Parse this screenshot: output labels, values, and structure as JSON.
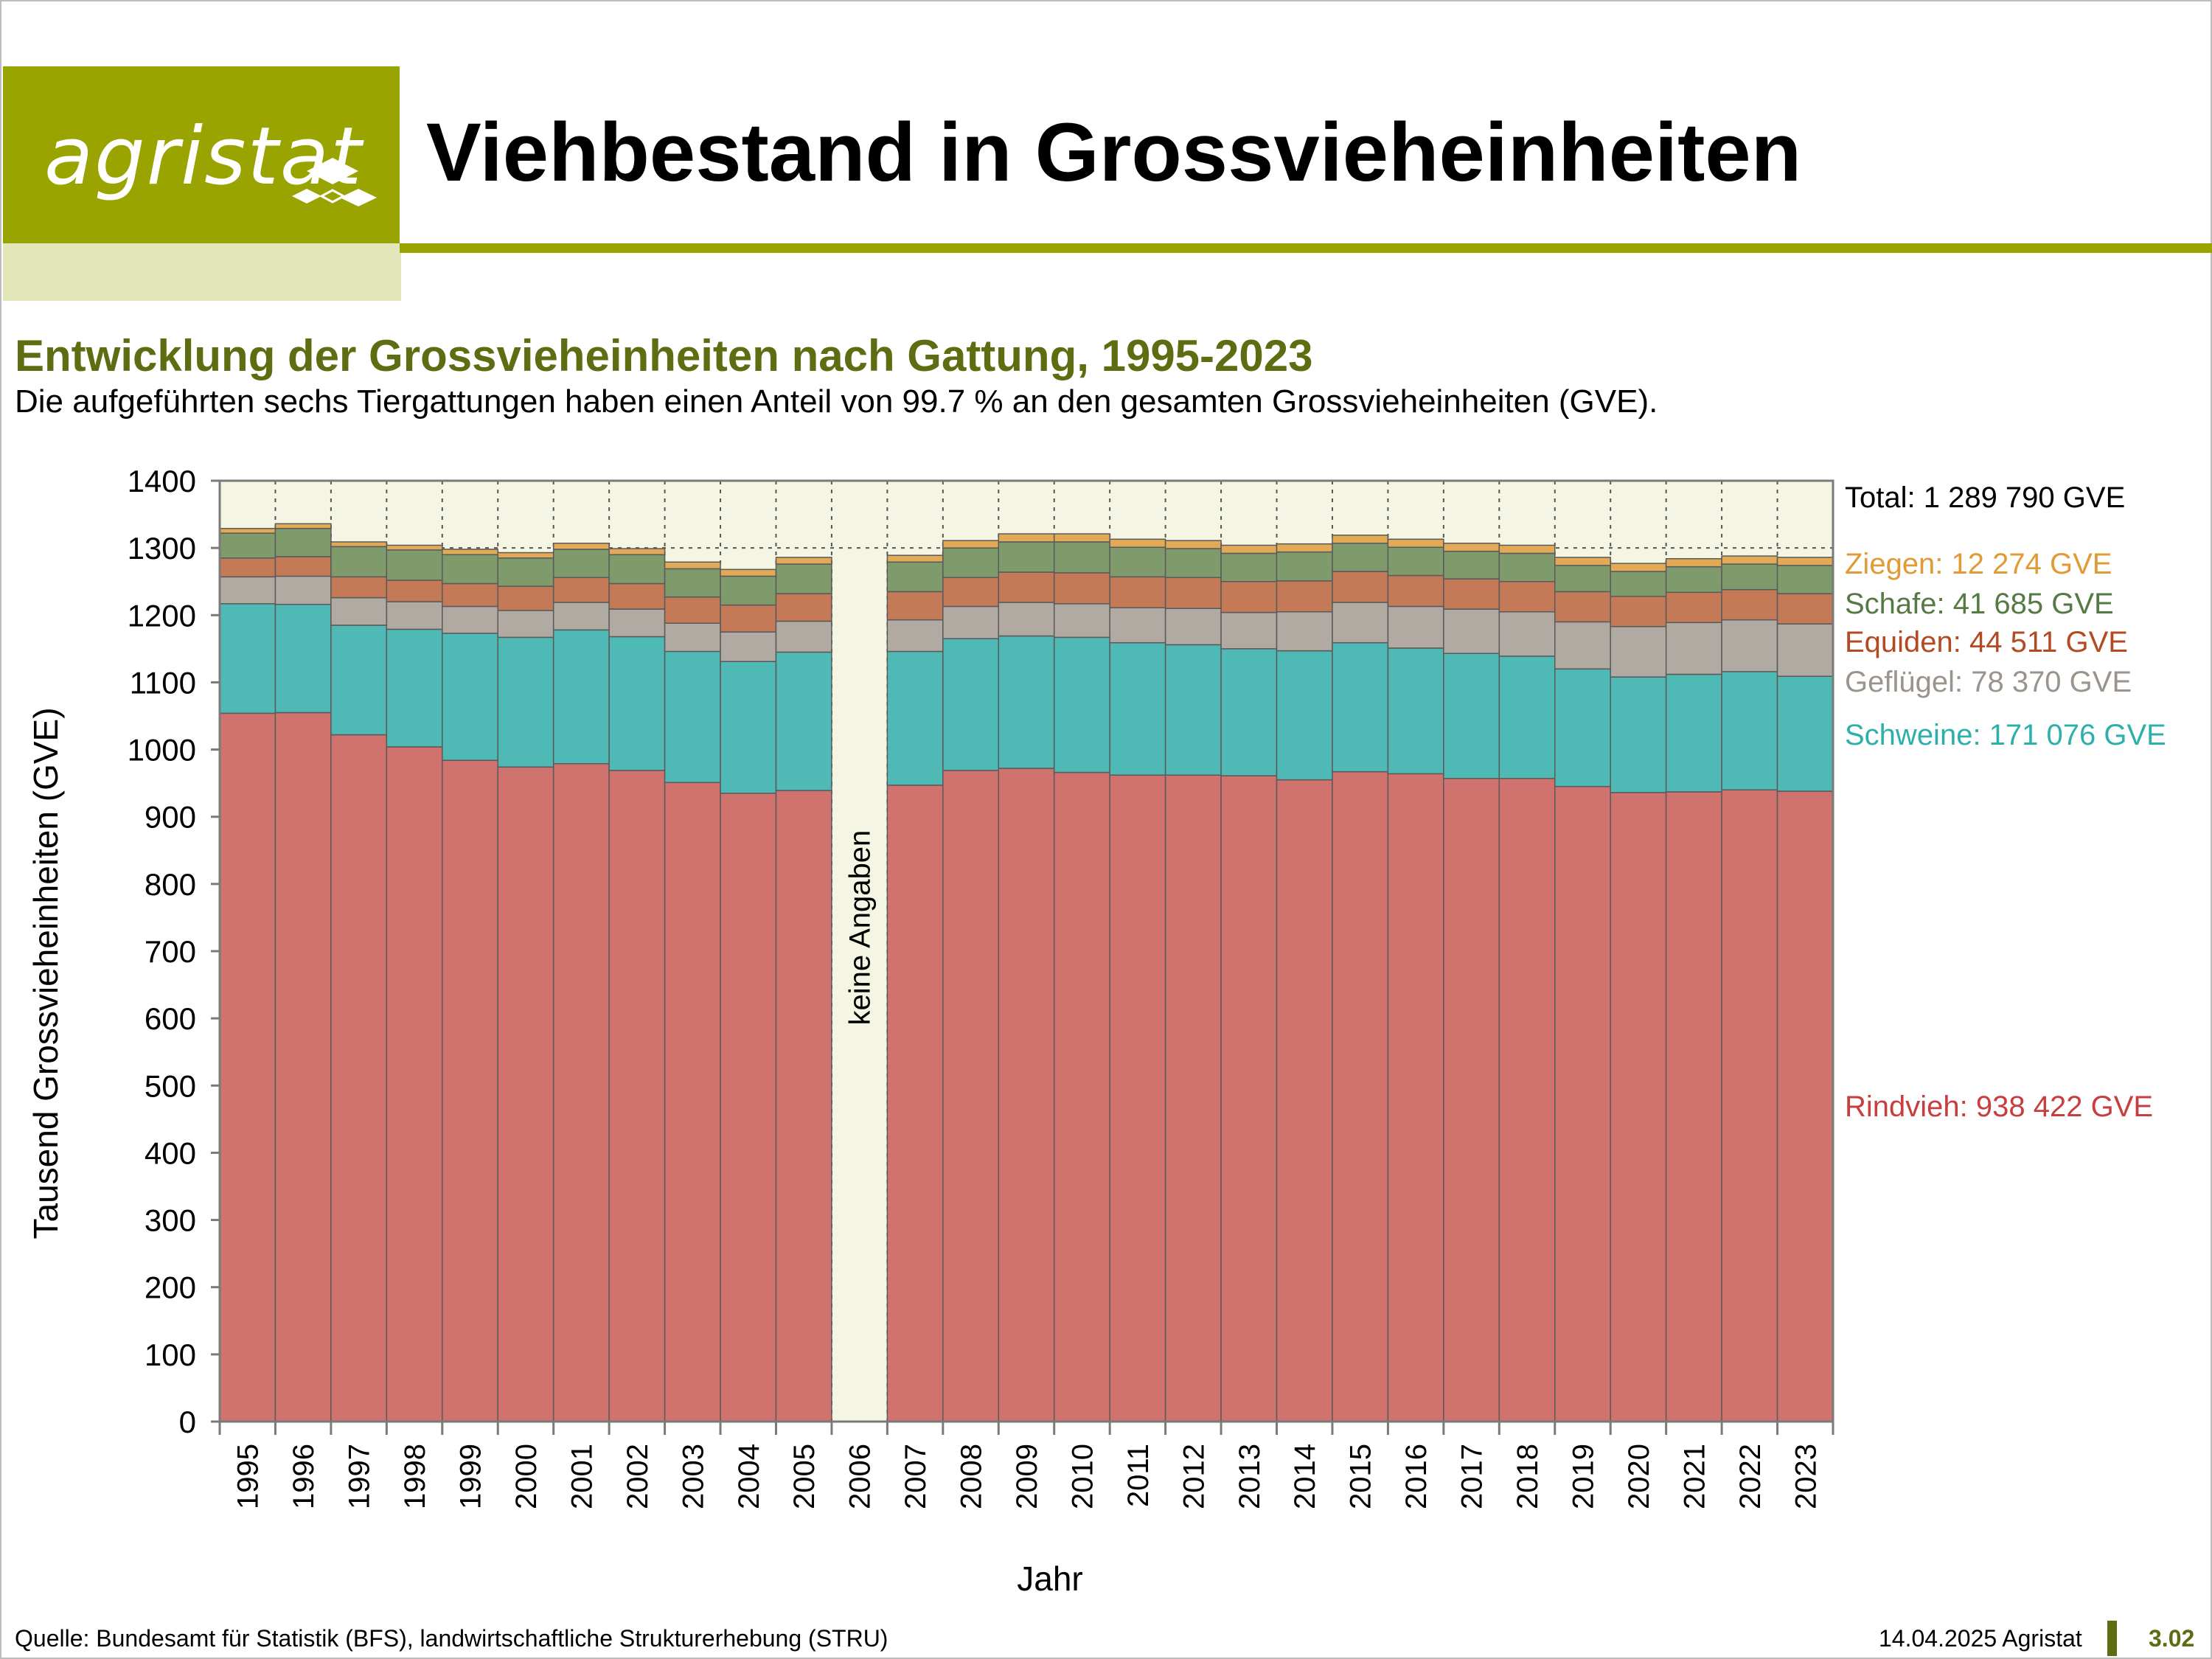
{
  "header": {
    "logo_text": "agristat",
    "title": "Viehbestand in Grossvieheinheiten"
  },
  "subtitle": "Entwicklung der Grossvieheinheiten nach Gattung, 1995-2023",
  "description": "Die aufgeführten sechs Tiergattungen haben einen Anteil von 99.7 % an den gesamten Grossvieheinheiten (GVE).",
  "footer": {
    "source": "Quelle: Bundesamt für Statistik (BFS), landwirtschaftliche Strukturerhebung (STRU)",
    "date": "14.04.2025 Agristat",
    "page": "3.02"
  },
  "chart_data": {
    "type": "bar",
    "stacked": true,
    "title": "",
    "xlabel": "Jahr",
    "ylabel": "Tausend Grossvieheinheiten (GVE)",
    "ylim": [
      0,
      1400
    ],
    "yticks": [
      0,
      100,
      200,
      300,
      400,
      500,
      600,
      700,
      800,
      900,
      1000,
      1100,
      1200,
      1300,
      1400
    ],
    "grid": "dotted vertical lines between years, dotted horizontal line at 1300",
    "categories": [
      "1995",
      "1996",
      "1997",
      "1998",
      "1999",
      "2000",
      "2001",
      "2002",
      "2003",
      "2004",
      "2005",
      "2006",
      "2007",
      "2008",
      "2009",
      "2010",
      "2011",
      "2012",
      "2013",
      "2014",
      "2015",
      "2016",
      "2017",
      "2018",
      "2019",
      "2020",
      "2021",
      "2022",
      "2023"
    ],
    "gap_label": "keine Angaben",
    "series": [
      {
        "key": "rindvieh",
        "color": "#d0736f",
        "values": [
          1054,
          1055,
          1022,
          1004,
          984,
          974,
          979,
          969,
          951,
          935,
          939,
          null,
          947,
          969,
          972,
          966,
          962,
          962,
          961,
          955,
          967,
          964,
          957,
          957,
          945,
          936,
          937,
          940,
          938
        ]
      },
      {
        "key": "schweine",
        "color": "#4fbab5",
        "values": [
          163,
          161,
          163,
          175,
          189,
          193,
          199,
          199,
          195,
          196,
          206,
          null,
          199,
          196,
          197,
          201,
          197,
          194,
          189,
          192,
          192,
          187,
          186,
          182,
          175,
          172,
          175,
          176,
          171
        ]
      },
      {
        "key": "gefluegel",
        "color": "#b1aaa2",
        "values": [
          40,
          42,
          41,
          41,
          40,
          40,
          41,
          41,
          42,
          44,
          46,
          null,
          47,
          48,
          50,
          50,
          52,
          54,
          54,
          58,
          60,
          62,
          66,
          66,
          70,
          75,
          77,
          77,
          78
        ]
      },
      {
        "key": "equiden",
        "color": "#c47a56",
        "values": [
          28,
          29,
          31,
          32,
          34,
          36,
          37,
          38,
          39,
          40,
          41,
          null,
          42,
          43,
          45,
          46,
          46,
          46,
          46,
          46,
          46,
          46,
          45,
          45,
          45,
          45,
          45,
          45,
          45
        ]
      },
      {
        "key": "schafe",
        "color": "#7f9b6c",
        "values": [
          37,
          42,
          45,
          45,
          43,
          42,
          42,
          43,
          42,
          43,
          44,
          null,
          44,
          44,
          45,
          46,
          44,
          43,
          42,
          43,
          42,
          42,
          41,
          42,
          39,
          37,
          38,
          38,
          42
        ]
      },
      {
        "key": "ziegen",
        "color": "#e2aa57",
        "values": [
          7,
          7,
          7,
          7,
          8,
          8,
          9,
          9,
          10,
          10,
          10,
          null,
          10,
          11,
          12,
          12,
          12,
          12,
          12,
          12,
          12,
          12,
          12,
          12,
          12,
          12,
          12,
          12,
          12
        ]
      }
    ],
    "annotations": [
      {
        "key": "total",
        "text": "Total: 1 289 790 GVE",
        "color": "#000000"
      },
      {
        "key": "ziegen",
        "text": "Ziegen: 12 274 GVE",
        "color": "#e09a36"
      },
      {
        "key": "schafe",
        "text": "Schafe: 41 685 GVE",
        "color": "#567a45"
      },
      {
        "key": "equiden",
        "text": "Equiden: 44 511 GVE",
        "color": "#b24a22"
      },
      {
        "key": "gefluegel",
        "text": "Geflügel: 78 370 GVE",
        "color": "#9a948d"
      },
      {
        "key": "schweine",
        "text": "Schweine: 171 076 GVE",
        "color": "#2db0aa"
      },
      {
        "key": "rindvieh",
        "text": "Rindvieh: 938 422 GVE",
        "color": "#c73e3e"
      }
    ]
  }
}
